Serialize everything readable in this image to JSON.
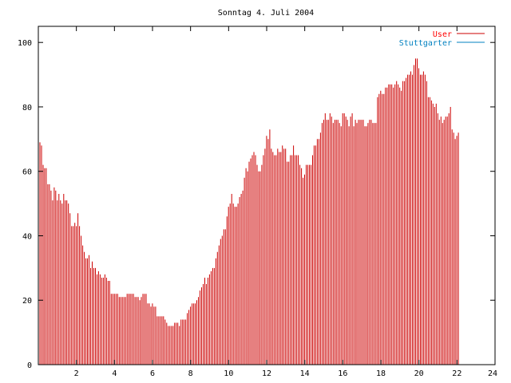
{
  "colors": {
    "user": "#cc0000",
    "stuttgarter": "#0080c0",
    "axis": "#000000",
    "background": "#ffffff"
  },
  "chart_data": {
    "type": "bar",
    "title": "Sonntag 4. Juli 2004",
    "xlabel": "",
    "ylabel": "",
    "xlim": [
      0,
      24
    ],
    "ylim": [
      0,
      105
    ],
    "xticks": [
      2,
      4,
      6,
      8,
      10,
      12,
      14,
      16,
      18,
      20,
      22,
      24
    ],
    "yticks": [
      0,
      20,
      40,
      60,
      80,
      100
    ],
    "grid": false,
    "legend_position": "top-right",
    "series": [
      {
        "name": "User",
        "color": "#cc0000",
        "x_start": 0,
        "x_step": 0.0833,
        "values": [
          69,
          69,
          68,
          62,
          61,
          61,
          56,
          56,
          54,
          51,
          55,
          54,
          51,
          53,
          51,
          50,
          53,
          51,
          51,
          50,
          47,
          43,
          43,
          44,
          43,
          47,
          43,
          40,
          37,
          35,
          33,
          33,
          34,
          30,
          32,
          30,
          30,
          28,
          29,
          28,
          27,
          27,
          28,
          27,
          26,
          26,
          22,
          22,
          22,
          22,
          22,
          21,
          21,
          21,
          21,
          21,
          22,
          22,
          22,
          22,
          22,
          21,
          21,
          21,
          20,
          21,
          22,
          22,
          22,
          19,
          19,
          18,
          19,
          18,
          18,
          15,
          15,
          15,
          15,
          15,
          14,
          13,
          12,
          12,
          12,
          12,
          13,
          13,
          13,
          12,
          14,
          14,
          14,
          14,
          16,
          17,
          18,
          19,
          19,
          19,
          20,
          21,
          23,
          24,
          25,
          27,
          25,
          27,
          28,
          29,
          30,
          30,
          33,
          35,
          37,
          39,
          40,
          42,
          42,
          46,
          49,
          50,
          53,
          50,
          49,
          49,
          50,
          52,
          53,
          54,
          58,
          61,
          60,
          63,
          64,
          65,
          66,
          65,
          62,
          60,
          60,
          62,
          65,
          67,
          71,
          70,
          73,
          67,
          66,
          65,
          65,
          67,
          66,
          66,
          68,
          67,
          67,
          63,
          63,
          65,
          65,
          68,
          65,
          65,
          65,
          62,
          61,
          58,
          59,
          62,
          62,
          62,
          62,
          65,
          68,
          68,
          70,
          70,
          72,
          75,
          76,
          78,
          76,
          76,
          78,
          77,
          75,
          76,
          76,
          76,
          75,
          74,
          78,
          78,
          77,
          76,
          74,
          77,
          78,
          74,
          76,
          75,
          76,
          76,
          76,
          76,
          74,
          74,
          75,
          76,
          76,
          75,
          75,
          75,
          83,
          84,
          85,
          84,
          84,
          86,
          86,
          87,
          87,
          87,
          86,
          87,
          88,
          87,
          86,
          85,
          88,
          88,
          89,
          90,
          90,
          91,
          90,
          93,
          95,
          95,
          92,
          90,
          90,
          91,
          90,
          88,
          83,
          83,
          82,
          81,
          80,
          81,
          78,
          76,
          77,
          75,
          76,
          77,
          77,
          78,
          80,
          73,
          72,
          70,
          71,
          72
        ]
      },
      {
        "name": "Stuttgarter",
        "color": "#0080c0",
        "values": []
      }
    ]
  }
}
